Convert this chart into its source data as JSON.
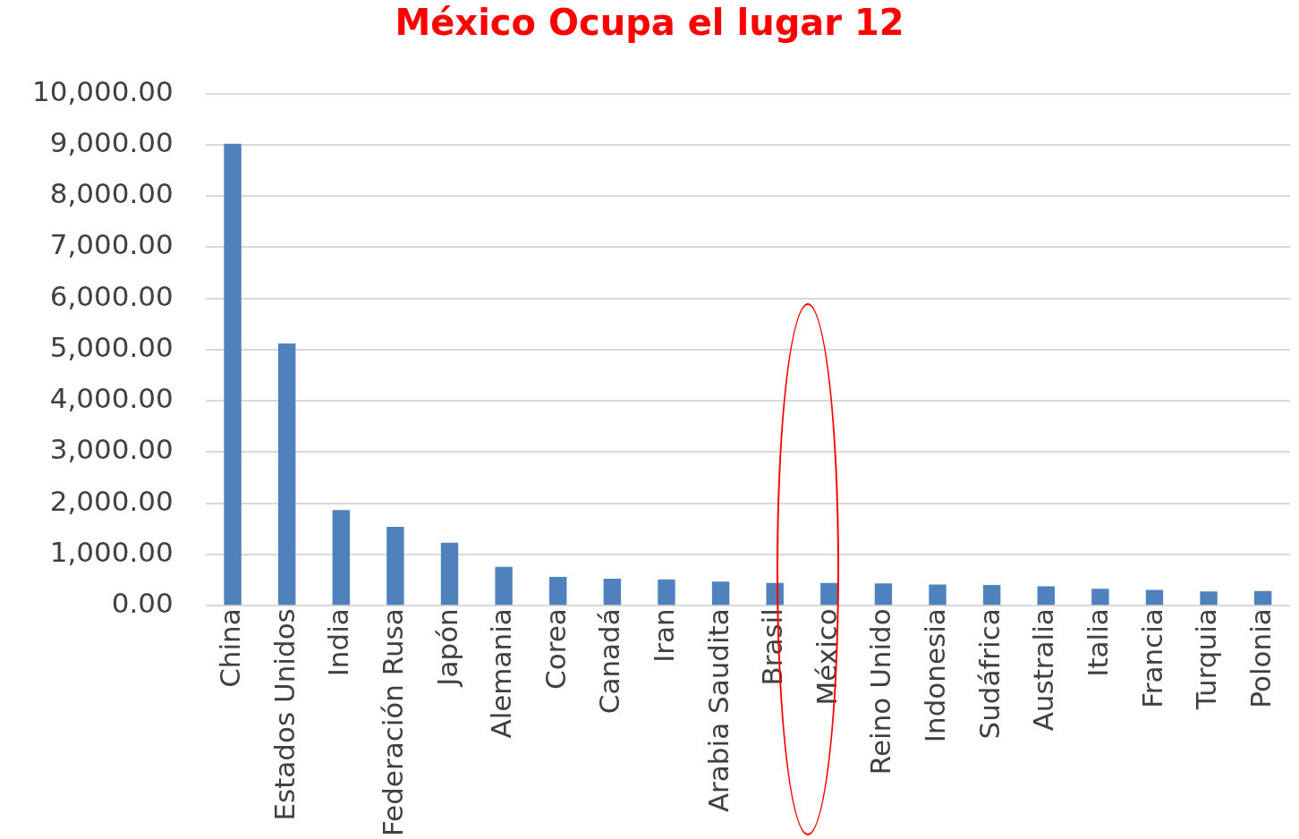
{
  "chart_data": {
    "type": "bar",
    "title": "México Ocupa el lugar 12",
    "categories": [
      "China",
      "Estados Unidos",
      "India",
      "Federación Rusa",
      "Japón",
      "Alemania",
      "Corea",
      "Canadá",
      "Iran",
      "Arabia Saudita",
      "Brasil",
      "México",
      "Reino Unido",
      "Indonesia",
      "Sudáfrica",
      "Australia",
      "Italia",
      "Francia",
      "Turquia",
      "Polonia"
    ],
    "values": [
      9020,
      5120,
      1870,
      1540,
      1230,
      760,
      565,
      530,
      515,
      470,
      445,
      445,
      435,
      415,
      405,
      380,
      330,
      310,
      280,
      290
    ],
    "color": "#4f81bd",
    "ylim": [
      0,
      10000
    ],
    "yticks": [
      {
        "value": 0,
        "label": "0.00"
      },
      {
        "value": 1000,
        "label": "1,000.00"
      },
      {
        "value": 2000,
        "label": "2,000.00"
      },
      {
        "value": 3000,
        "label": "3,000.00"
      },
      {
        "value": 4000,
        "label": "4,000.00"
      },
      {
        "value": 5000,
        "label": "5,000.00"
      },
      {
        "value": 6000,
        "label": "6,000.00"
      },
      {
        "value": 7000,
        "label": "7,000.00"
      },
      {
        "value": 8000,
        "label": "8,000.00"
      },
      {
        "value": 9000,
        "label": "9,000.00"
      },
      {
        "value": 10000,
        "label": "10,000.00"
      }
    ],
    "grid": "y"
  }
}
